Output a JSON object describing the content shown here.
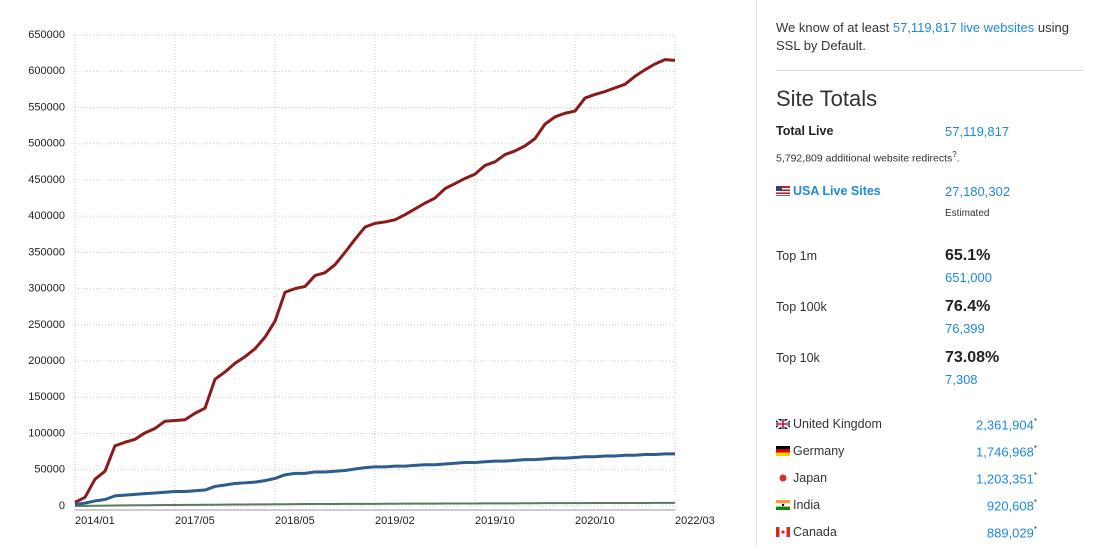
{
  "chart_data": {
    "type": "line",
    "categories": [
      "2014/01",
      null,
      null,
      null,
      null,
      null,
      null,
      null,
      null,
      null,
      "2017/05",
      null,
      null,
      null,
      null,
      null,
      null,
      null,
      null,
      null,
      "2018/05",
      null,
      null,
      null,
      null,
      null,
      null,
      null,
      null,
      null,
      "2019/02",
      null,
      null,
      null,
      null,
      null,
      null,
      null,
      null,
      null,
      "2019/10",
      null,
      null,
      null,
      null,
      null,
      null,
      null,
      null,
      null,
      "2020/10",
      null,
      null,
      null,
      null,
      null,
      null,
      null,
      null,
      null,
      "2022/03"
    ],
    "series": [
      {
        "color": "#8b1a1a",
        "values": [
          5000,
          12000,
          37000,
          48000,
          83000,
          88000,
          92000,
          101000,
          107000,
          117000,
          118000,
          119000,
          128000,
          135000,
          175000,
          185000,
          197000,
          206000,
          217000,
          233000,
          255000,
          295000,
          300000,
          303000,
          318000,
          322000,
          333000,
          350000,
          368000,
          385000,
          390000,
          392000,
          395000,
          402000,
          410000,
          418000,
          425000,
          438000,
          445000,
          452000,
          458000,
          470000,
          475000,
          485000,
          490000,
          497000,
          507000,
          527000,
          537000,
          542000,
          545000,
          563000,
          568000,
          572000,
          577000,
          582000,
          593000,
          602000,
          610000,
          616000,
          615000
        ]
      },
      {
        "color": "#2d5d8c",
        "values": [
          2000,
          4000,
          7000,
          9000,
          14000,
          15000,
          16000,
          17000,
          18000,
          19000,
          20000,
          20000,
          21000,
          22000,
          27000,
          29000,
          31000,
          32000,
          33000,
          35000,
          38000,
          43000,
          45000,
          45000,
          47000,
          47000,
          48000,
          49000,
          51000,
          53000,
          54000,
          54000,
          55000,
          55000,
          56000,
          57000,
          57000,
          58000,
          59000,
          60000,
          60000,
          61000,
          62000,
          62000,
          63000,
          64000,
          64000,
          65000,
          66000,
          66000,
          67000,
          68000,
          68000,
          69000,
          69000,
          70000,
          70000,
          71000,
          71000,
          72000,
          72000
        ]
      },
      {
        "color": "#5b7a5b",
        "values": [
          0,
          100,
          300,
          500,
          700,
          900,
          1000,
          1100,
          1200,
          1300,
          1400,
          1500,
          1600,
          1700,
          1800,
          1900,
          2000,
          2100,
          2200,
          2300,
          2400,
          2500,
          2600,
          2700,
          2700,
          2800,
          2800,
          2900,
          2900,
          3000,
          3000,
          3100,
          3100,
          3200,
          3200,
          3300,
          3300,
          3400,
          3400,
          3500,
          3500,
          3600,
          3600,
          3700,
          3700,
          3800,
          3800,
          3900,
          3900,
          4000,
          4000,
          4000,
          4100,
          4100,
          4100,
          4200,
          4200,
          4200,
          4300,
          4300,
          4300
        ]
      }
    ],
    "ylim": [
      0,
      650000
    ],
    "yticks": [
      0,
      50000,
      100000,
      150000,
      200000,
      250000,
      300000,
      350000,
      400000,
      450000,
      500000,
      550000,
      600000,
      650000
    ],
    "grid": true
  },
  "sidebar": {
    "intro": {
      "before": "We know of at least",
      "link": "57,119,817 live websites",
      "after": "using SSL by Default."
    },
    "heading": "Site Totals",
    "total_live": {
      "label": "Total Live",
      "value": "57,119,817"
    },
    "redirects": {
      "text": "5,792,809 additional website redirects",
      "sup": "?",
      "end": "."
    },
    "usa": {
      "label": "USA Live Sites",
      "value": "27,180,302",
      "note": "Estimated"
    },
    "tops": [
      {
        "label": "Top 1m",
        "percent": "65.1%",
        "count": "651,000"
      },
      {
        "label": "Top 100k",
        "percent": "76.4%",
        "count": "76,399"
      },
      {
        "label": "Top 10k",
        "percent": "73.08%",
        "count": "7,308"
      }
    ],
    "footnote_mark": "*",
    "countries": [
      {
        "name": "United Kingdom",
        "value": "2,361,904"
      },
      {
        "name": "Germany",
        "value": "1,746,968"
      },
      {
        "name": "Japan",
        "value": "1,203,351"
      },
      {
        "name": "India",
        "value": "920,608"
      },
      {
        "name": "Canada",
        "value": "889,029"
      }
    ]
  }
}
